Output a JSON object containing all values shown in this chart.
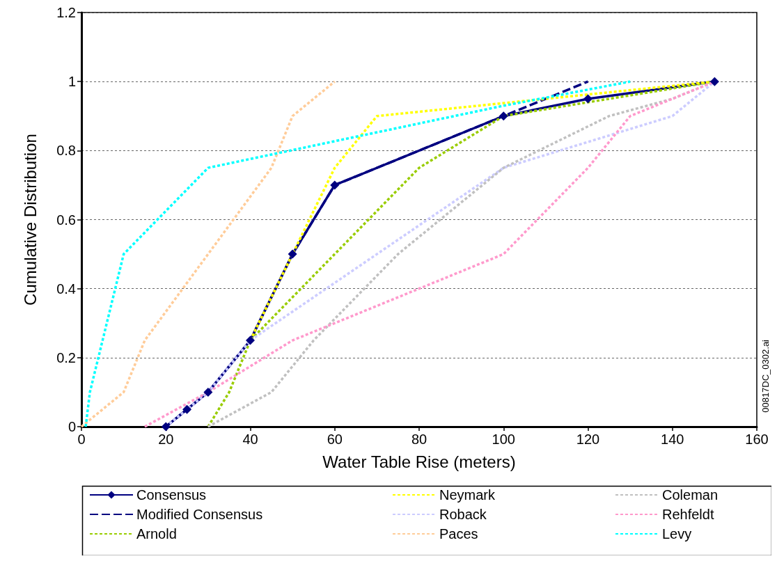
{
  "chart_data": {
    "type": "line",
    "xlabel": "Water Table Rise (meters)",
    "ylabel": "Cumulative Distribution",
    "xlim": [
      0,
      160
    ],
    "xticks": [
      0,
      20,
      40,
      60,
      80,
      100,
      120,
      140,
      160
    ],
    "ylim": [
      0,
      1.2
    ],
    "yticks": [
      0,
      0.2,
      0.4,
      0.6,
      0.8,
      1,
      1.2
    ],
    "grid": "y",
    "legend": "bottom",
    "marker": "none",
    "line_style": "dotted",
    "annotations": [
      "00817DC_0302.ai"
    ],
    "series": [
      {
        "name": "Consensus",
        "color": "#000080",
        "marker": "diamond",
        "line_style": "solid",
        "x": [
          20,
          25,
          30,
          40,
          50,
          60,
          100,
          120,
          150
        ],
        "values": [
          0,
          0.05,
          0.1,
          0.25,
          0.5,
          0.7,
          0.9,
          0.95,
          1
        ]
      },
      {
        "name": "Modified Consensus",
        "color": "#000080",
        "line_style": "dashed",
        "x": [
          20,
          25,
          30,
          40,
          50,
          60,
          100,
          120
        ],
        "values": [
          0,
          0.05,
          0.1,
          0.25,
          0.5,
          0.7,
          0.9,
          1
        ]
      },
      {
        "name": "Arnold",
        "color": "#99cc00",
        "x": [
          30,
          35,
          40,
          60,
          80,
          100,
          150
        ],
        "values": [
          0,
          0.1,
          0.25,
          0.5,
          0.75,
          0.9,
          1
        ]
      },
      {
        "name": "Neymark",
        "color": "#ffff00",
        "x": [
          40,
          50,
          60,
          70,
          150
        ],
        "values": [
          0.25,
          0.5,
          0.75,
          0.9,
          1
        ]
      },
      {
        "name": "Roback",
        "color": "#ccccff",
        "x": [
          20,
          25,
          30,
          40,
          70,
          100,
          140,
          150
        ],
        "values": [
          0,
          0.05,
          0.1,
          0.25,
          0.5,
          0.75,
          0.9,
          1
        ]
      },
      {
        "name": "Paces",
        "color": "#ffcc99",
        "x": [
          0,
          10,
          15,
          30,
          45,
          50,
          60
        ],
        "values": [
          0,
          0.1,
          0.25,
          0.5,
          0.75,
          0.9,
          1
        ]
      },
      {
        "name": "Coleman",
        "color": "#c0c0c0",
        "x": [
          30,
          45,
          55,
          75,
          100,
          125,
          140,
          150
        ],
        "values": [
          0,
          0.1,
          0.25,
          0.5,
          0.75,
          0.9,
          0.95,
          1
        ]
      },
      {
        "name": "Rehfeldt",
        "color": "#ff99cc",
        "x": [
          15,
          30,
          50,
          100,
          120,
          130,
          150
        ],
        "values": [
          0,
          0.1,
          0.25,
          0.5,
          0.75,
          0.9,
          1
        ]
      },
      {
        "name": "Levy",
        "color": "#00ffff",
        "x": [
          1,
          2,
          5,
          10,
          30,
          100,
          130
        ],
        "values": [
          0,
          0.1,
          0.25,
          0.5,
          0.75,
          0.93,
          1
        ]
      }
    ]
  }
}
